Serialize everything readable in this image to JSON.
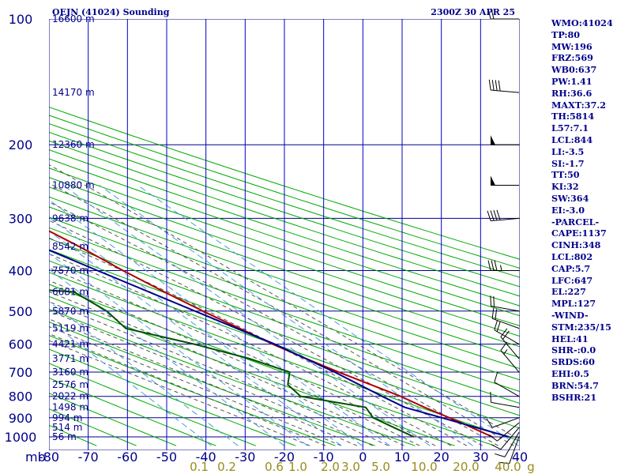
{
  "chart_data": {
    "type": "line",
    "title": "OEJN (41024) Sounding",
    "time_label": "2300Z 30 APR 25",
    "pressure_unit": "mb",
    "pressure_levels": [
      100,
      200,
      300,
      400,
      500,
      600,
      700,
      800,
      900,
      1000
    ],
    "pressure_range": [
      100,
      1000
    ],
    "temperature_ticks": [
      -80,
      -70,
      -60,
      -50,
      -40,
      -30,
      -20,
      -10,
      0,
      10,
      20,
      30,
      40
    ],
    "temperature_labels": [
      "-80",
      "-70",
      "-60",
      "-50",
      "-40",
      "-30",
      "-20",
      "-10",
      "0",
      "10",
      "20",
      "30",
      "40"
    ],
    "mixing_ratio_labels": [
      "0.1",
      "0.2",
      "0.6",
      "1.0",
      "2.0",
      "3.0",
      "5.0",
      "10.0",
      "20.0",
      "40.0",
      "g"
    ],
    "height_labels": [
      {
        "p": 100,
        "text": "16600 m"
      },
      {
        "p": 150,
        "text": "14170 m"
      },
      {
        "p": 200,
        "text": "12360 m"
      },
      {
        "p": 250,
        "text": "10880 m"
      },
      {
        "p": 300,
        "text": "9638 m"
      },
      {
        "p": 350,
        "text": "8542 m"
      },
      {
        "p": 400,
        "text": "7570 m"
      },
      {
        "p": 450,
        "text": "6681 m"
      },
      {
        "p": 500,
        "text": "5870 m"
      },
      {
        "p": 550,
        "text": "5119 m"
      },
      {
        "p": 600,
        "text": "4421 m"
      },
      {
        "p": 650,
        "text": "3771 m"
      },
      {
        "p": 700,
        "text": "3160 m"
      },
      {
        "p": 750,
        "text": "2576 m"
      },
      {
        "p": 800,
        "text": "2022 m"
      },
      {
        "p": 850,
        "text": "1498 m"
      },
      {
        "p": 900,
        "text": "994 m"
      },
      {
        "p": 950,
        "text": "514 m"
      },
      {
        "p": 1000,
        "text": "56 m"
      }
    ],
    "series": [
      {
        "kind": "temperature",
        "color": "#b00000",
        "points": [
          [
            1000,
            33.0
          ],
          [
            925,
            29.0
          ],
          [
            850,
            24.0
          ],
          [
            800,
            21.0
          ],
          [
            700,
            12.0
          ],
          [
            650,
            7.5
          ],
          [
            600,
            3.0
          ],
          [
            550,
            -1.0
          ],
          [
            500,
            -5.5
          ],
          [
            450,
            -10.0
          ],
          [
            400,
            -14.5
          ],
          [
            350,
            -19.0
          ],
          [
            320,
            -22.5
          ],
          [
            300,
            -23.0
          ],
          [
            280,
            -26.0
          ],
          [
            250,
            -31.0
          ],
          [
            230,
            -33.5
          ],
          [
            200,
            -39.5
          ],
          [
            160,
            -50.0
          ],
          [
            140,
            -55.5
          ],
          [
            120,
            -60.0
          ],
          [
            110,
            -64.0
          ],
          [
            100,
            -69.5
          ]
        ]
      },
      {
        "kind": "dewpoint",
        "color": "#005000",
        "points": [
          [
            1000,
            13.0
          ],
          [
            950,
            10.5
          ],
          [
            900,
            8.0
          ],
          [
            850,
            9.0
          ],
          [
            800,
            -4.5
          ],
          [
            750,
            -4.5
          ],
          [
            700,
            -0.5
          ],
          [
            650,
            -7.0
          ],
          [
            600,
            -17.0
          ],
          [
            550,
            -30.0
          ],
          [
            500,
            -30.0
          ],
          [
            450,
            -33.0
          ],
          [
            445,
            -40.0
          ],
          [
            400,
            -41.0
          ],
          [
            360,
            -42.0
          ],
          [
            330,
            -40.0
          ],
          [
            310,
            -39.5
          ],
          [
            305,
            -51.0
          ],
          [
            300,
            -48.0
          ],
          [
            280,
            -51.0
          ],
          [
            260,
            -63.0
          ],
          [
            230,
            -63.0
          ],
          [
            220,
            -69.0
          ],
          [
            200,
            -75.0
          ],
          [
            170,
            -86.0
          ],
          [
            100,
            -110.0
          ]
        ]
      },
      {
        "kind": "parcel",
        "color": "#00008b",
        "points": [
          [
            1000,
            37.2
          ],
          [
            900,
            25.5
          ],
          [
            850,
            19.0
          ],
          [
            802,
            16.4
          ],
          [
            700,
            11.0
          ],
          [
            600,
            3.5
          ],
          [
            500,
            -7.5
          ],
          [
            400,
            -21.0
          ],
          [
            300,
            -38.0
          ],
          [
            227,
            -54.0
          ],
          [
            200,
            -60.5
          ],
          [
            127,
            -77.0
          ],
          [
            100,
            -85.0
          ]
        ]
      }
    ],
    "wind_barbs": [
      {
        "p": 1000,
        "dir": 200,
        "spd": 10
      },
      {
        "p": 975,
        "dir": 210,
        "spd": 10
      },
      {
        "p": 950,
        "dir": 220,
        "spd": 10
      },
      {
        "p": 925,
        "dir": 230,
        "spd": 10
      },
      {
        "p": 900,
        "dir": 250,
        "spd": 10
      },
      {
        "p": 850,
        "dir": 280,
        "spd": 10
      },
      {
        "p": 800,
        "dir": 300,
        "spd": 10
      },
      {
        "p": 700,
        "dir": 320,
        "spd": 15
      },
      {
        "p": 650,
        "dir": 320,
        "spd": 20
      },
      {
        "p": 600,
        "dir": 300,
        "spd": 20
      },
      {
        "p": 550,
        "dir": 290,
        "spd": 20
      },
      {
        "p": 500,
        "dir": 280,
        "spd": 20
      },
      {
        "p": 400,
        "dir": 270,
        "spd": 35
      },
      {
        "p": 300,
        "dir": 265,
        "spd": 40
      },
      {
        "p": 250,
        "dir": 270,
        "spd": 50
      },
      {
        "p": 200,
        "dir": 270,
        "spd": 50
      },
      {
        "p": 150,
        "dir": 275,
        "spd": 40
      },
      {
        "p": 100,
        "dir": 270,
        "spd": 20
      }
    ]
  },
  "indices": [
    "WMO:41024",
    "TP:80",
    "MW:196",
    "FRZ:569",
    "WB0:637",
    "PW:1.41",
    "RH:36.6",
    "MAXT:37.2",
    "TH:5814",
    "L57:7.1",
    "LCL:844",
    "LI:-3.5",
    "SI:-1.7",
    "TT:50",
    "KI:32",
    "SW:364",
    "EI:-3.0",
    "-PARCEL-",
    "CAPE:1137",
    "CINH:348",
    "LCL:802",
    "CAP:5.7",
    "LFC:647",
    "EL:227",
    "MPL:127",
    "-WIND-",
    "STM:235/15",
    "HEL:41",
    "SHR-:0.0",
    "SRDS:60",
    "EHI:0.5",
    "BRN:54.7",
    "BSHR:21"
  ],
  "colors": {
    "temperature": "#b00000",
    "dewpoint": "#005000",
    "parcel": "#00008b",
    "isobar": "#00008b",
    "isotherm": "#0000c8",
    "dry_adiabat": "#00aa00",
    "moist_adiabat": "#555555",
    "mixing_ratio": "#4b9be0",
    "text": "#00008b"
  }
}
